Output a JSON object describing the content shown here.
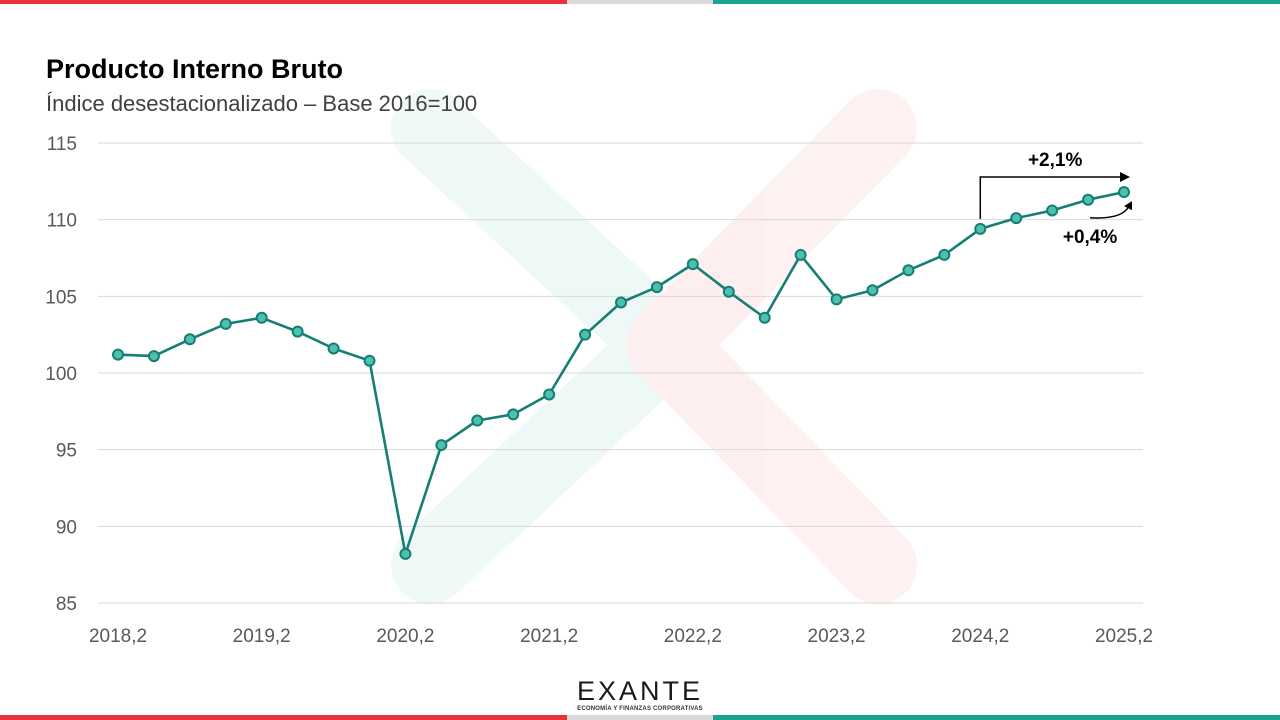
{
  "title": "Producto Interno Bruto",
  "subtitle": "Índice desestacionalizado – Base 2016=100",
  "logo": {
    "wordmark": "EXANTE",
    "tagline": "ECONOMÍA Y FINANZAS CORPORATIVAS"
  },
  "colors": {
    "line": "#167f74",
    "marker_fill": "#4dc0ae",
    "stripe_red": "#e8323e",
    "stripe_grey": "#d9d9d9",
    "stripe_teal": "#1aa392",
    "watermark_teal": "#1aa392",
    "watermark_red": "#e8323e",
    "grid": "#d9d9d9"
  },
  "chart_data": {
    "type": "line",
    "title": "Producto Interno Bruto",
    "subtitle": "Índice desestacionalizado – Base 2016=100",
    "x": [
      "2018,2",
      "2018,3",
      "2018,4",
      "2019,1",
      "2019,2",
      "2019,3",
      "2019,4",
      "2020,1",
      "2020,2",
      "2020,3",
      "2020,4",
      "2021,1",
      "2021,2",
      "2021,3",
      "2021,4",
      "2022,1",
      "2022,2",
      "2022,3",
      "2022,4",
      "2023,1",
      "2023,2",
      "2023,3",
      "2023,4",
      "2024,1",
      "2024,2",
      "2024,3",
      "2024,4",
      "2025,1",
      "2025,2"
    ],
    "x_tick_labels": [
      "2018,2",
      "2019,2",
      "2020,2",
      "2021,2",
      "2022,2",
      "2023,2",
      "2024,2",
      "2025,2"
    ],
    "series": [
      {
        "values": [
          101.2,
          101.1,
          102.2,
          103.2,
          103.6,
          102.7,
          101.6,
          100.8,
          88.2,
          95.3,
          96.9,
          97.3,
          98.6,
          102.5,
          104.6,
          105.6,
          107.1,
          105.3,
          103.6,
          107.7,
          104.8,
          105.4,
          106.7,
          107.7,
          109.4,
          110.1,
          110.6,
          111.3,
          111.8
        ]
      }
    ],
    "ylim": [
      85,
      115
    ],
    "y_ticks": [
      85,
      90,
      95,
      100,
      105,
      110,
      115
    ],
    "grid": true,
    "annotations": [
      {
        "text": "+2,1%",
        "from": "2024,2",
        "to": "2025,2",
        "style": "elbow-arrow"
      },
      {
        "text": "+0,4%",
        "from": "2025,1",
        "to": "2025,2",
        "style": "curved-arrow"
      }
    ]
  }
}
